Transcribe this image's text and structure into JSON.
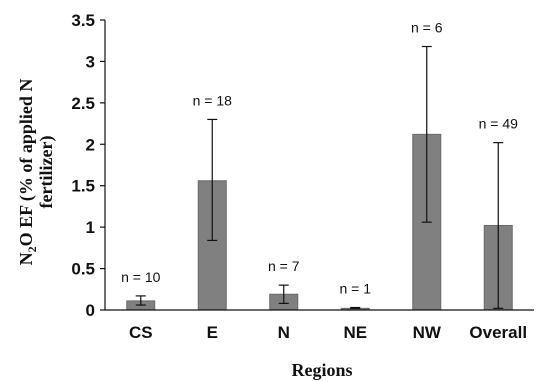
{
  "chart_data": {
    "type": "bar",
    "categories": [
      "CS",
      "E",
      "N",
      "NE",
      "NW",
      "Overall"
    ],
    "values": [
      0.11,
      1.56,
      0.19,
      0.02,
      2.12,
      1.02
    ],
    "error_low": [
      0.06,
      0.84,
      0.08,
      0.02,
      1.06,
      0.02
    ],
    "error_high": [
      0.17,
      2.3,
      0.3,
      0.03,
      3.18,
      2.02
    ],
    "data_labels": [
      "n = 10",
      "n = 18",
      "n = 7",
      "n = 1",
      "n = 6",
      "n = 49"
    ],
    "xlabel": "Regions",
    "ylabel_line1": "N2O EF (% of applied N",
    "ylabel_line2": "fertilizer)",
    "ylim": [
      0,
      3.5
    ],
    "yticks": [
      "0",
      "0.5",
      "1",
      "1.5",
      "2",
      "2.5",
      "3",
      "3.5"
    ],
    "grid": false,
    "colors": {
      "bar": "#808080",
      "axis": "#111111"
    }
  }
}
